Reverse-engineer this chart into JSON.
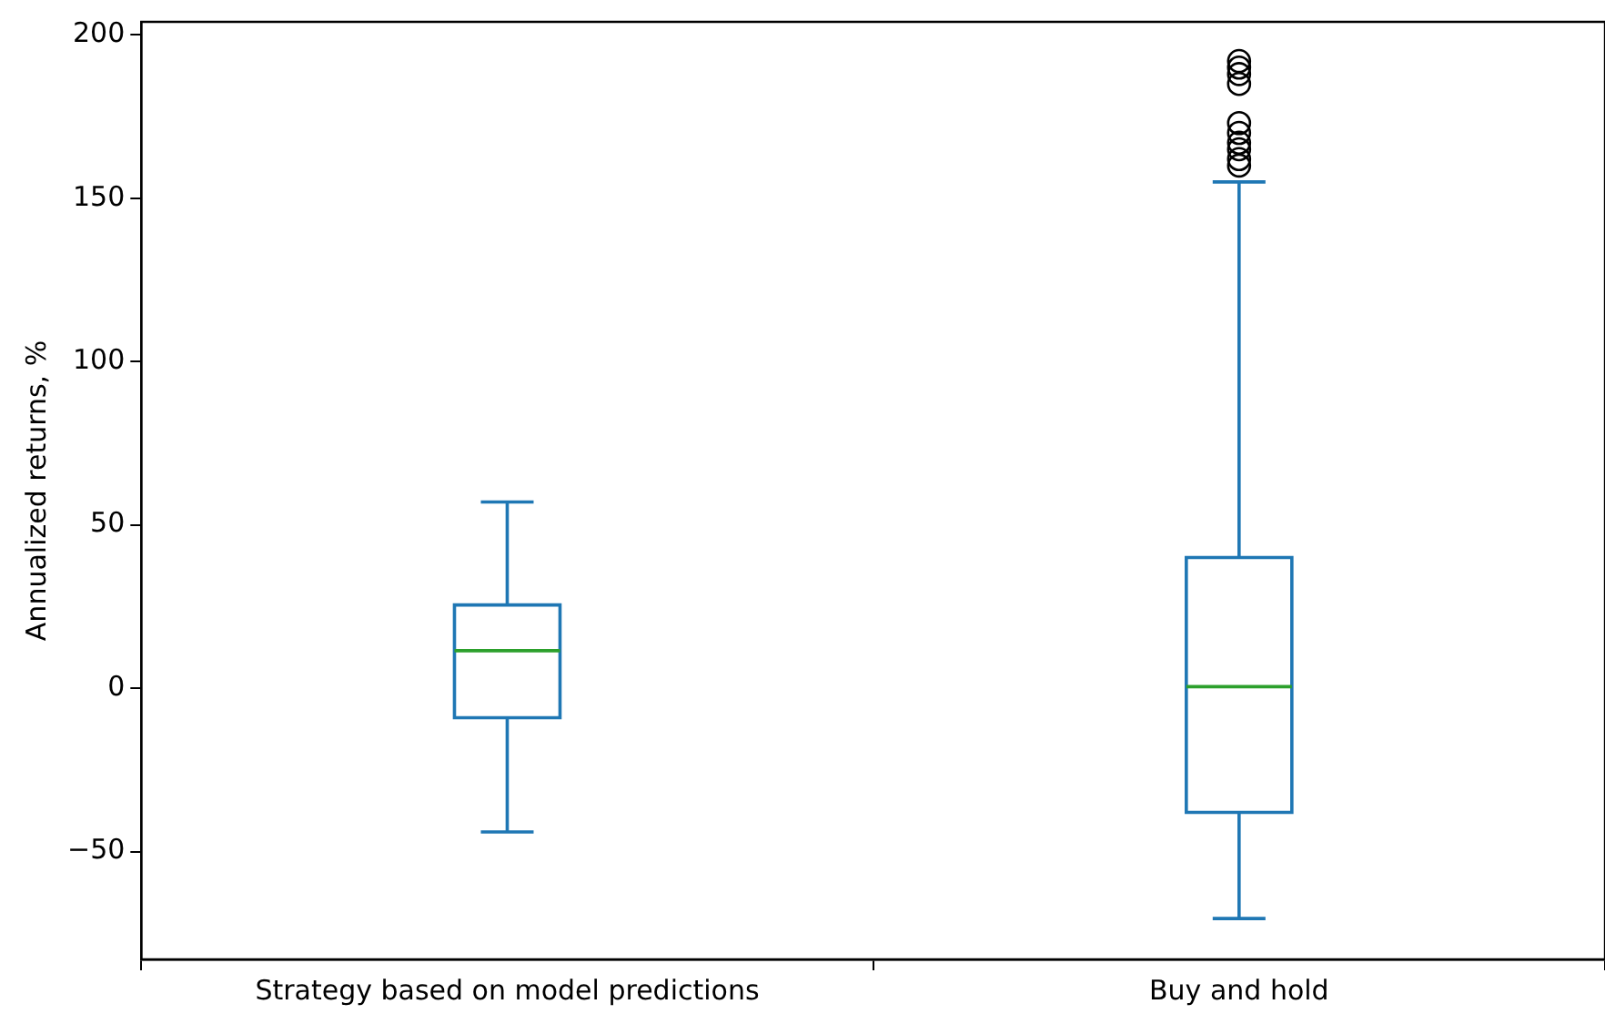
{
  "chart_data": {
    "type": "box",
    "ylabel": "Annualized returns, %",
    "categories": [
      "Strategy based on model predictions",
      "Buy and hold"
    ],
    "boxes": [
      {
        "low": -44,
        "q1": -9,
        "median": 11.5,
        "q3": 25.5,
        "high": 57
      },
      {
        "low": -70.5,
        "q1": -38,
        "median": 0.5,
        "q3": 40,
        "high": 155,
        "outliers": [
          160,
          162,
          165,
          167,
          170,
          173,
          185,
          188,
          190,
          192
        ]
      }
    ],
    "color": "#1f77b4",
    "ylim": [
      -83,
      204
    ],
    "yticks": [
      {
        "value": -50,
        "label": "−50"
      },
      0,
      50,
      100,
      150,
      200
    ],
    "grid": false,
    "legend": false
  }
}
